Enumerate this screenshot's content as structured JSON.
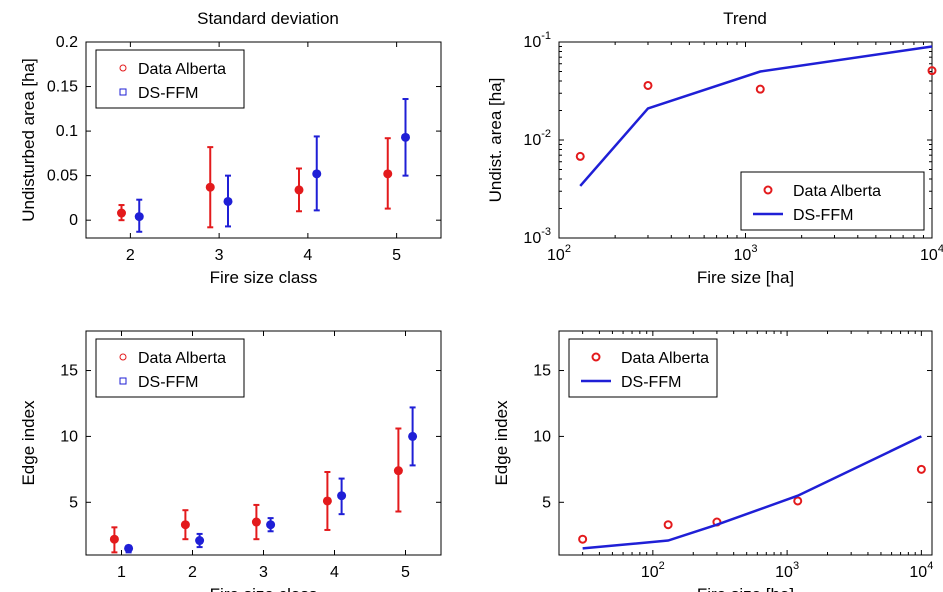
{
  "column_titles": {
    "left": "Standard deviation",
    "right": "Trend"
  },
  "colors": {
    "data_alberta": "#e31a1c",
    "ds_ffm": "#1f1fd6",
    "axis": "#000000"
  },
  "chart_data": [
    {
      "id": "sd-area",
      "type": "scatter",
      "title": "Standard deviation",
      "xlabel": "Fire size class",
      "ylabel": "Undisturbed area [ha]",
      "xlim": [
        1.5,
        5.5
      ],
      "ylim": [
        -0.02,
        0.2
      ],
      "xticks": [
        2,
        3,
        4,
        5
      ],
      "xtick_labels": [
        "2",
        "3",
        "4",
        "5"
      ],
      "yticks": [
        0,
        0.05,
        0.1,
        0.15,
        0.2
      ],
      "ytick_labels": [
        "0",
        "0.05",
        "0.1",
        "0.15",
        "0.2"
      ],
      "legend_position": "top-left",
      "series": [
        {
          "name": "Data Alberta",
          "marker": "circle",
          "color": "#e31a1c",
          "x": [
            1.9,
            2.9,
            3.9,
            4.9
          ],
          "y": [
            0.008,
            0.037,
            0.034,
            0.052
          ],
          "err_low": [
            0.0,
            -0.008,
            0.01,
            0.013
          ],
          "err_high": [
            0.017,
            0.082,
            0.058,
            0.092
          ]
        },
        {
          "name": "DS-FFM",
          "marker": "square",
          "color": "#1f1fd6",
          "x": [
            2.1,
            3.1,
            4.1,
            5.1
          ],
          "y": [
            0.004,
            0.021,
            0.052,
            0.093
          ],
          "err_low": [
            -0.013,
            -0.007,
            0.011,
            0.05
          ],
          "err_high": [
            0.023,
            0.05,
            0.094,
            0.136
          ]
        }
      ]
    },
    {
      "id": "trend-area",
      "type": "line",
      "title": "Trend",
      "xlabel": "Fire size [ha]",
      "ylabel": "Undist. area [ha]",
      "xscale": "log",
      "yscale": "log",
      "xlim": [
        100,
        10000
      ],
      "ylim": [
        0.001,
        0.1
      ],
      "xticks": [
        100,
        1000,
        10000
      ],
      "xtick_labels": [
        {
          "base": "10",
          "exp": "2"
        },
        {
          "base": "10",
          "exp": "3"
        },
        {
          "base": "10",
          "exp": "4"
        }
      ],
      "yticks": [
        0.001,
        0.01,
        0.1
      ],
      "ytick_labels": [
        {
          "base": "10",
          "exp": "-3"
        },
        {
          "base": "10",
          "exp": "-2"
        },
        {
          "base": "10",
          "exp": "-1"
        }
      ],
      "legend_position": "bottom-right",
      "series": [
        {
          "name": "Data Alberta",
          "kind": "markers",
          "color": "#e31a1c",
          "x": [
            130,
            300,
            1200,
            10000
          ],
          "y": [
            0.0068,
            0.036,
            0.033,
            0.051
          ]
        },
        {
          "name": "DS-FFM",
          "kind": "line",
          "color": "#1f1fd6",
          "x": [
            130,
            300,
            1200,
            10000
          ],
          "y": [
            0.0034,
            0.021,
            0.05,
            0.09
          ]
        }
      ]
    },
    {
      "id": "sd-edge",
      "type": "scatter",
      "xlabel": "Fire size class",
      "ylabel": "Edge index",
      "xlim": [
        0.5,
        5.5
      ],
      "ylim": [
        1,
        18
      ],
      "xticks": [
        1,
        2,
        3,
        4,
        5
      ],
      "xtick_labels": [
        "1",
        "2",
        "3",
        "4",
        "5"
      ],
      "yticks": [
        5,
        10,
        15
      ],
      "ytick_labels": [
        "5",
        "10",
        "15"
      ],
      "legend_position": "top-left",
      "series": [
        {
          "name": "Data Alberta",
          "marker": "circle",
          "color": "#e31a1c",
          "x": [
            0.9,
            1.9,
            2.9,
            3.9,
            4.9
          ],
          "y": [
            2.2,
            3.3,
            3.5,
            5.1,
            7.4
          ],
          "err_low": [
            1.2,
            2.2,
            2.2,
            2.9,
            4.3
          ],
          "err_high": [
            3.1,
            4.4,
            4.8,
            7.3,
            10.6
          ]
        },
        {
          "name": "DS-FFM",
          "marker": "square",
          "color": "#1f1fd6",
          "x": [
            1.1,
            2.1,
            3.1,
            4.1,
            5.1
          ],
          "y": [
            1.5,
            2.1,
            3.3,
            5.5,
            10.0
          ],
          "err_low": [
            1.2,
            1.6,
            2.8,
            4.1,
            7.8
          ],
          "err_high": [
            1.7,
            2.6,
            3.8,
            6.8,
            12.2
          ]
        }
      ]
    },
    {
      "id": "trend-edge",
      "type": "line",
      "xlabel": "Fire size [ha]",
      "ylabel": "Edge index",
      "xscale": "log",
      "xlim": [
        20,
        12000
      ],
      "ylim": [
        1,
        18
      ],
      "xticks": [
        100,
        1000,
        10000
      ],
      "xtick_labels": [
        {
          "base": "10",
          "exp": "2"
        },
        {
          "base": "10",
          "exp": "3"
        },
        {
          "base": "10",
          "exp": "4"
        }
      ],
      "yticks": [
        5,
        10,
        15
      ],
      "ytick_labels": [
        "5",
        "10",
        "15"
      ],
      "legend_position": "top-left",
      "series": [
        {
          "name": "Data Alberta",
          "kind": "markers",
          "color": "#e31a1c",
          "x": [
            30,
            130,
            300,
            1200,
            10000
          ],
          "y": [
            2.2,
            3.3,
            3.5,
            5.1,
            7.5
          ]
        },
        {
          "name": "DS-FFM",
          "kind": "line",
          "color": "#1f1fd6",
          "x": [
            30,
            130,
            300,
            1200,
            10000
          ],
          "y": [
            1.5,
            2.1,
            3.3,
            5.5,
            10.0
          ]
        }
      ]
    }
  ]
}
